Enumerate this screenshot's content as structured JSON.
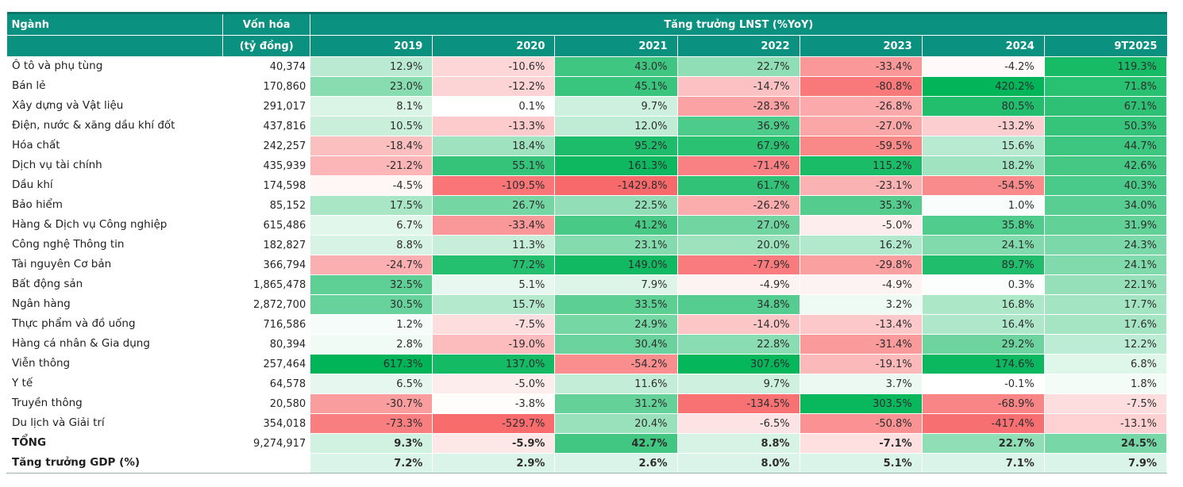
{
  "colors": {
    "header_bg": "#0b9180",
    "header_top_border": "#0b7568",
    "header_text": "#ffffff",
    "max_green": "#00b457",
    "max_red": "#f8696b",
    "neutral_bg": "#ffffff",
    "gdp_cell_bg": "#daf4ea",
    "body_text": "#2d2d2d"
  },
  "table": {
    "col1_header": "Ngành",
    "col2_header_line1": "Vốn hóa",
    "col2_header_line2": "(tỷ đồng)",
    "group_header": "Tăng trưởng LNST (%YoY)"
  },
  "chart_data": {
    "type": "heatmap",
    "title": "Tăng trưởng LNST (%YoY)",
    "unit_note": "Vốn hóa (tỷ đồng)",
    "columns": [
      "2019",
      "2020",
      "2021",
      "2022",
      "2023",
      "2024",
      "9T2025"
    ],
    "rows": [
      {
        "sector": "Ô tô và phụ tùng",
        "market_cap": "40,374",
        "growth_pct": [
          12.9,
          -10.6,
          43.0,
          22.7,
          -33.4,
          -4.2,
          119.3
        ]
      },
      {
        "sector": "Bán lẻ",
        "market_cap": "170,860",
        "growth_pct": [
          23.0,
          -12.2,
          45.1,
          -14.7,
          -80.8,
          420.2,
          71.8
        ]
      },
      {
        "sector": "Xây dựng và Vật liệu",
        "market_cap": "291,017",
        "growth_pct": [
          8.1,
          0.1,
          9.7,
          -28.3,
          -26.8,
          80.5,
          67.1
        ]
      },
      {
        "sector": "Điện, nước & xăng dầu khí đốt",
        "market_cap": "437,816",
        "growth_pct": [
          10.5,
          -13.3,
          12.0,
          36.9,
          -27.0,
          -13.2,
          50.3
        ]
      },
      {
        "sector": "Hóa chất",
        "market_cap": "242,257",
        "growth_pct": [
          -18.4,
          18.4,
          95.2,
          67.9,
          -59.5,
          15.6,
          44.7
        ]
      },
      {
        "sector": "Dịch vụ tài chính",
        "market_cap": "435,939",
        "growth_pct": [
          -21.2,
          55.1,
          161.3,
          -71.4,
          115.2,
          18.2,
          42.6
        ]
      },
      {
        "sector": "Dầu khí",
        "market_cap": "174,598",
        "growth_pct": [
          -4.5,
          -109.5,
          -1429.8,
          61.7,
          -23.1,
          -54.5,
          40.3
        ]
      },
      {
        "sector": "Bảo hiểm",
        "market_cap": "85,152",
        "growth_pct": [
          17.5,
          26.7,
          22.5,
          -26.2,
          35.3,
          1.0,
          34.0
        ]
      },
      {
        "sector": "Hàng & Dịch vụ Công nghiệp",
        "market_cap": "615,486",
        "growth_pct": [
          6.7,
          -33.4,
          41.2,
          27.0,
          -5.0,
          35.8,
          31.9
        ]
      },
      {
        "sector": "Công nghệ Thông tin",
        "market_cap": "182,827",
        "growth_pct": [
          8.8,
          11.3,
          23.1,
          20.0,
          16.2,
          24.1,
          24.3
        ]
      },
      {
        "sector": "Tài nguyên Cơ bản",
        "market_cap": "366,794",
        "growth_pct": [
          -24.7,
          77.2,
          149.0,
          -77.9,
          -29.8,
          89.7,
          24.1
        ]
      },
      {
        "sector": "Bất động sản",
        "market_cap": "1,865,478",
        "growth_pct": [
          32.5,
          5.1,
          7.9,
          -4.9,
          -4.9,
          0.3,
          22.1
        ]
      },
      {
        "sector": "Ngân hàng",
        "market_cap": "2,872,700",
        "growth_pct": [
          30.5,
          15.7,
          33.5,
          34.8,
          3.2,
          16.8,
          17.7
        ]
      },
      {
        "sector": "Thực phẩm và đồ uống",
        "market_cap": "716,586",
        "growth_pct": [
          1.2,
          -7.5,
          24.9,
          -14.0,
          -13.4,
          16.4,
          17.6
        ]
      },
      {
        "sector": "Hàng cá nhân & Gia dụng",
        "market_cap": "80,394",
        "growth_pct": [
          2.8,
          -19.0,
          30.4,
          22.8,
          -31.4,
          29.2,
          12.2
        ]
      },
      {
        "sector": "Viễn thông",
        "market_cap": "257,464",
        "growth_pct": [
          617.3,
          137.0,
          -54.2,
          307.6,
          -19.1,
          174.6,
          6.8
        ]
      },
      {
        "sector": "Y tế",
        "market_cap": "64,578",
        "growth_pct": [
          6.5,
          -5.0,
          11.6,
          9.7,
          3.7,
          -0.1,
          1.8
        ]
      },
      {
        "sector": "Truyền thông",
        "market_cap": "20,580",
        "growth_pct": [
          -30.7,
          -3.8,
          31.2,
          -134.5,
          303.5,
          -68.9,
          -7.5
        ]
      },
      {
        "sector": "Du lịch và Giải trí",
        "market_cap": "354,018",
        "growth_pct": [
          -73.3,
          -529.7,
          20.4,
          -6.5,
          -50.8,
          -417.4,
          -13.1
        ]
      }
    ],
    "total": {
      "label": "TỔNG",
      "market_cap": "9,274,917",
      "growth_pct": [
        9.3,
        -5.9,
        42.7,
        8.8,
        -7.1,
        22.7,
        24.5
      ]
    },
    "gdp": {
      "label": "Tăng trưởng GDP (%)",
      "values_pct": [
        7.2,
        2.9,
        2.6,
        8.0,
        5.1,
        7.1,
        7.9
      ]
    }
  }
}
